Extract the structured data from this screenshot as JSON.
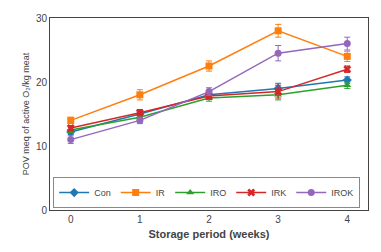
{
  "chart_data": {
    "type": "line",
    "x": [
      0,
      1,
      2,
      3,
      4
    ],
    "series": [
      {
        "name": "Con",
        "values": [
          12.2,
          15.0,
          18.0,
          19.0,
          20.3
        ],
        "yerr": [
          0.4,
          0.5,
          0.5,
          0.8,
          0.5
        ],
        "marker": "diamond"
      },
      {
        "name": "IR",
        "values": [
          14.0,
          18.0,
          22.5,
          28.0,
          24.0
        ],
        "yerr": [
          0.5,
          0.8,
          0.8,
          1.0,
          0.8
        ],
        "marker": "square"
      },
      {
        "name": "IRO",
        "values": [
          12.5,
          14.5,
          17.5,
          18.0,
          19.5
        ],
        "yerr": [
          0.4,
          0.5,
          0.5,
          0.8,
          0.5
        ],
        "marker": "triangle"
      },
      {
        "name": "IRK",
        "values": [
          12.8,
          15.2,
          17.8,
          18.5,
          22.0
        ],
        "yerr": [
          0.4,
          0.5,
          0.5,
          1.0,
          0.5
        ],
        "marker": "x"
      },
      {
        "name": "IROK",
        "values": [
          11.0,
          14.0,
          18.5,
          24.5,
          26.0
        ],
        "yerr": [
          0.6,
          0.5,
          0.6,
          1.2,
          1.0
        ],
        "marker": "circle"
      }
    ],
    "xlabel": "Storage period (weeks)",
    "ylabel": "POV meq of active O₂/kg meat",
    "xlim": [
      -0.3,
      4.3
    ],
    "xticks": [
      0,
      1,
      2,
      3,
      4
    ],
    "ylim": [
      0,
      30
    ],
    "yticks": [
      0,
      10,
      20,
      30
    ],
    "grid": false,
    "legend": "lower left"
  }
}
